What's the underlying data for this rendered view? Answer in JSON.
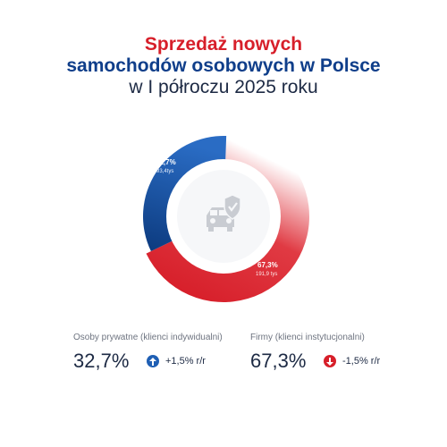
{
  "title": {
    "line1": "Sprzedaż nowych",
    "line2": "samochodów osobowych w Polsce",
    "line3": "w I półroczu 2025 roku"
  },
  "chart_data": {
    "type": "pie",
    "title": "Sprzedaż nowych samochodów osobowych w Polsce w I półroczu 2025 roku",
    "series": [
      {
        "name": "Osoby prywatne (klienci indywidualni)",
        "percent": 32.7,
        "percent_label": "32,7%",
        "value_label": "93,4tys",
        "value": 93.4,
        "color": "#1f5fb4"
      },
      {
        "name": "Firmy (klienci instytucjonalni)",
        "percent": 67.3,
        "percent_label": "67,3%",
        "value_label": "191,9 tys",
        "value": 191.9,
        "color": "#d71f2a"
      }
    ],
    "center_icon": "car-shield-icon"
  },
  "stats": [
    {
      "label": "Osoby prywatne (klienci indywidualni)",
      "value": "32,7%",
      "change": "+1,5% r/r",
      "direction": "up",
      "color": "#1f5fb4"
    },
    {
      "label": "Firmy (klienci instytucjonalni)",
      "value": "67,3%",
      "change": "-1,5% r/r",
      "direction": "down",
      "color": "#d71f2a"
    }
  ]
}
